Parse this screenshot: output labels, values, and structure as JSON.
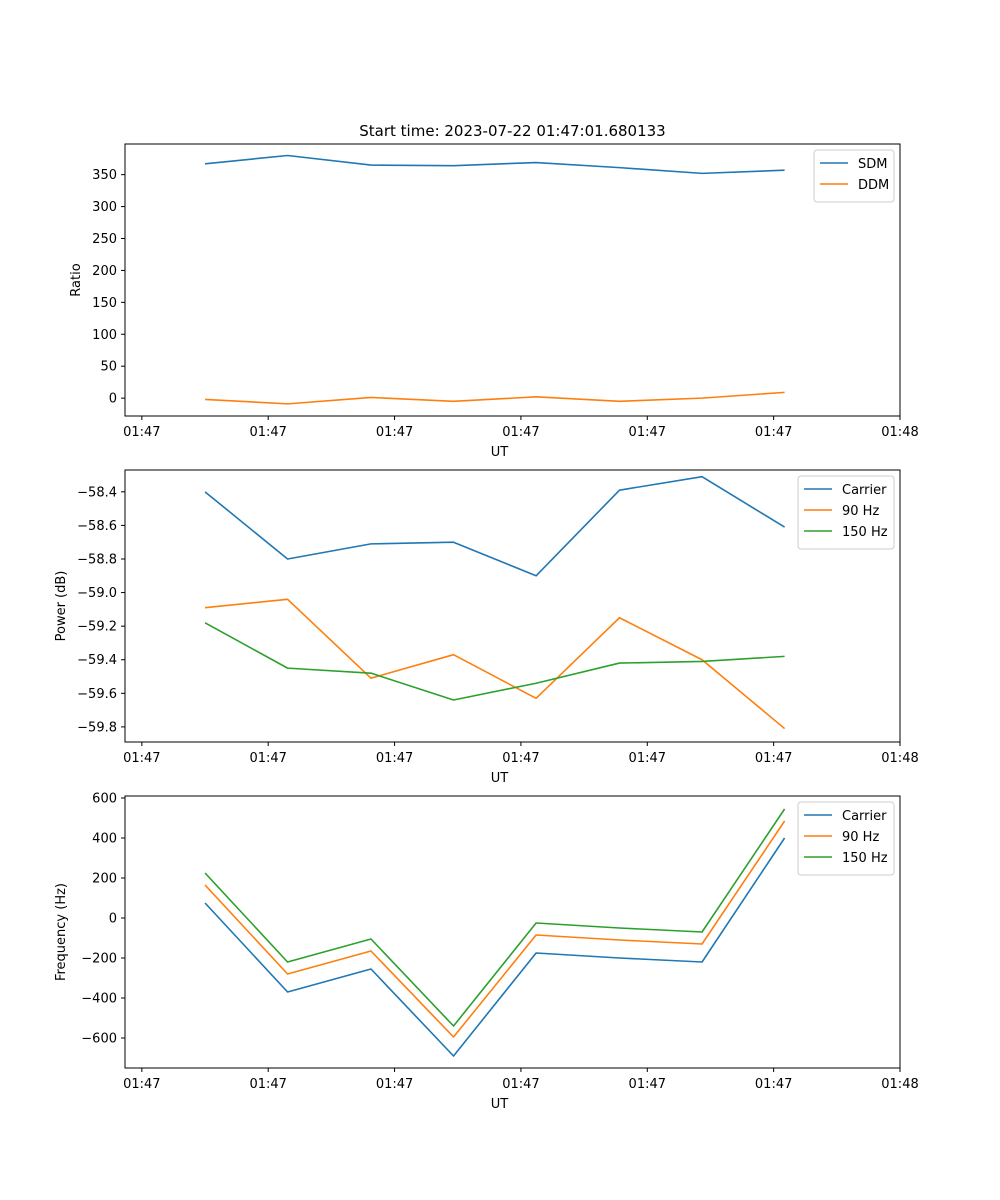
{
  "figure_title": "Start time: 2023-07-22 01:47:01.680133",
  "chart_data": [
    {
      "type": "line",
      "title": "Start time: 2023-07-22 01:47:01.680133",
      "xlabel": "UT",
      "ylabel": "Ratio",
      "xlim": [
        -0.2,
        9.0
      ],
      "ylim": [
        -28,
        398
      ],
      "x_ticks": [
        0,
        1.5,
        3,
        4.5,
        6,
        7.5,
        9
      ],
      "x_tick_labels": [
        "01:47",
        "01:47",
        "01:47",
        "01:47",
        "01:47",
        "01:47",
        "01:48"
      ],
      "y_ticks": [
        0,
        50,
        100,
        150,
        200,
        250,
        300,
        350
      ],
      "y_tick_labels": [
        "0",
        "50",
        "100",
        "150",
        "200",
        "250",
        "300",
        "350"
      ],
      "legend_position": "upper-right",
      "x": [
        0.75,
        1.73,
        2.72,
        3.7,
        4.68,
        5.67,
        6.65,
        7.63
      ],
      "series": [
        {
          "name": "SDM",
          "color": "#1f77b4",
          "values": [
            367,
            380,
            365,
            364,
            369,
            361,
            352,
            357
          ]
        },
        {
          "name": "DDM",
          "color": "#ff7f0e",
          "values": [
            -2,
            -9,
            1,
            -5,
            2,
            -5,
            0,
            9
          ]
        }
      ]
    },
    {
      "type": "line",
      "title": "",
      "xlabel": "UT",
      "ylabel": "Power (dB)",
      "xlim": [
        -0.2,
        9.0
      ],
      "ylim": [
        -59.89,
        -58.27
      ],
      "x_ticks": [
        0,
        1.5,
        3,
        4.5,
        6,
        7.5,
        9
      ],
      "x_tick_labels": [
        "01:47",
        "01:47",
        "01:47",
        "01:47",
        "01:47",
        "01:47",
        "01:48"
      ],
      "y_ticks": [
        -59.8,
        -59.6,
        -59.4,
        -59.2,
        -59.0,
        -58.8,
        -58.6,
        -58.4
      ],
      "y_tick_labels": [
        "−59.8",
        "−59.6",
        "−59.4",
        "−59.2",
        "−59.0",
        "−58.8",
        "−58.6",
        "−58.4"
      ],
      "legend_position": "upper-right",
      "x": [
        0.75,
        1.73,
        2.72,
        3.7,
        4.68,
        5.67,
        6.65,
        7.63
      ],
      "series": [
        {
          "name": "Carrier",
          "color": "#1f77b4",
          "values": [
            -58.4,
            -58.8,
            -58.71,
            -58.7,
            -58.9,
            -58.39,
            -58.31,
            -58.61
          ]
        },
        {
          "name": "90 Hz",
          "color": "#ff7f0e",
          "values": [
            -59.09,
            -59.04,
            -59.51,
            -59.37,
            -59.63,
            -59.15,
            -59.4,
            -59.81
          ]
        },
        {
          "name": "150 Hz",
          "color": "#2ca02c",
          "values": [
            -59.18,
            -59.45,
            -59.48,
            -59.64,
            -59.54,
            -59.42,
            -59.41,
            -59.38
          ]
        }
      ]
    },
    {
      "type": "line",
      "title": "",
      "xlabel": "UT",
      "ylabel": "Frequency (Hz)",
      "xlim": [
        -0.2,
        9.0
      ],
      "ylim": [
        -750,
        610
      ],
      "x_ticks": [
        0,
        1.5,
        3,
        4.5,
        6,
        7.5,
        9
      ],
      "x_tick_labels": [
        "01:47",
        "01:47",
        "01:47",
        "01:47",
        "01:47",
        "01:47",
        "01:48"
      ],
      "y_ticks": [
        -600,
        -400,
        -200,
        0,
        200,
        400,
        600
      ],
      "y_tick_labels": [
        "−600",
        "−400",
        "−200",
        "0",
        "200",
        "400",
        "600"
      ],
      "legend_position": "upper-right",
      "x": [
        0.75,
        1.73,
        2.72,
        3.7,
        4.68,
        5.67,
        6.65,
        7.63
      ],
      "series": [
        {
          "name": "Carrier",
          "color": "#1f77b4",
          "values": [
            75,
            -370,
            -255,
            -690,
            -175,
            -200,
            -220,
            400
          ]
        },
        {
          "name": "90 Hz",
          "color": "#ff7f0e",
          "values": [
            165,
            -280,
            -165,
            -595,
            -85,
            -110,
            -130,
            485
          ]
        },
        {
          "name": "150 Hz",
          "color": "#2ca02c",
          "values": [
            225,
            -220,
            -105,
            -540,
            -25,
            -50,
            -70,
            545
          ]
        }
      ]
    }
  ]
}
